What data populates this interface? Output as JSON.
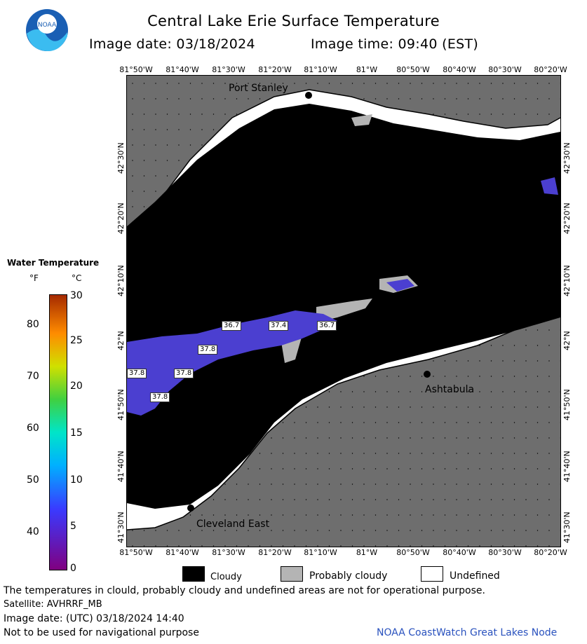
{
  "header": {
    "title": "Central Lake Erie Surface Temperature",
    "image_date_label": "Image date: 03/18/2024",
    "image_time_label": "Image time: 09:40 (EST)",
    "logo_text": "NOAA"
  },
  "map": {
    "lon_labels": [
      "81°50'W",
      "81°40'W",
      "81°30'W",
      "81°20'W",
      "81°10'W",
      "81°W",
      "80°50'W",
      "80°40'W",
      "80°30'W",
      "80°20'W"
    ],
    "lat_labels": [
      "42°30'N",
      "42°20'N",
      "42°10'N",
      "42°N",
      "41°50'N",
      "41°40'N",
      "41°30'N"
    ],
    "cities": [
      {
        "name": "Port Stanley"
      },
      {
        "name": "Ashtabula"
      },
      {
        "name": "Cleveland East"
      }
    ],
    "temperature_tags": [
      "36.7",
      "37.4",
      "36.7",
      "37.8",
      "37.8",
      "37.8",
      "37.8"
    ]
  },
  "legend": {
    "title": "Water Temperature",
    "unit_f": "°F",
    "unit_c": "°C",
    "f_ticks": [
      "80",
      "70",
      "60",
      "50",
      "40"
    ],
    "c_ticks": [
      "30",
      "25",
      "20",
      "15",
      "10",
      "5",
      "0"
    ],
    "colors": [
      "#800080",
      "#3a3aff",
      "#00b0ff",
      "#00e5c8",
      "#40d040",
      "#d0e000",
      "#ff8c00",
      "#a52a00"
    ]
  },
  "key": {
    "cloudy": "Cloudy",
    "probably_cloudy": "Probably cloudy",
    "undefined": "Undefined"
  },
  "footer": {
    "disclaimer": "The temperatures in clould, probably cloudy and undefined areas are not for operational purpose.",
    "satellite": "Satellite: AVHRRF_MB",
    "image_date_utc": "Image date: (UTC) 03/18/2024  14:40",
    "navigation_note": "Not to be used for navigational purpose",
    "credit": "NOAA CoastWatch Great Lakes Node"
  },
  "colors": {
    "land": "#6e6e6e",
    "cloudy": "#000000",
    "probably_cloudy": "#b4b4b4",
    "undefined": "#ffffff",
    "warm_water": "#4b3fd0"
  }
}
